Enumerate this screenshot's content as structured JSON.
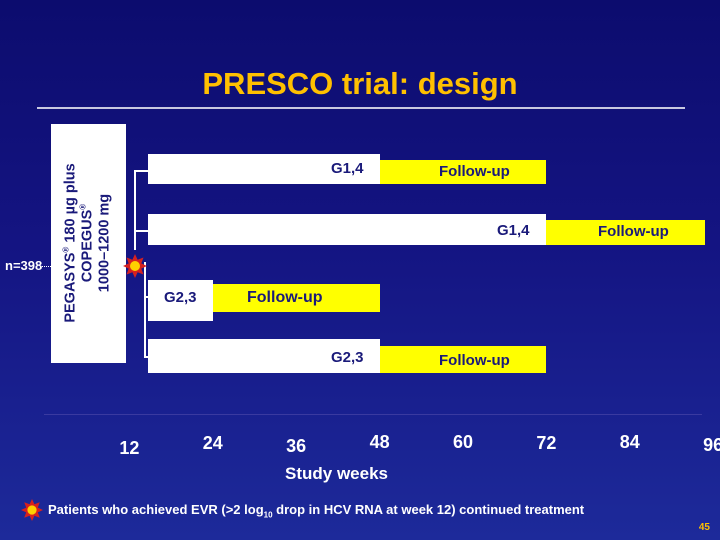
{
  "title": "PRESCO trial: design",
  "arm": {
    "drug1": "PEGASYS",
    "drug1_mark": "®",
    "drug1_dose": " 180 µg plus",
    "drug2": "COPEGUS",
    "drug2_mark": "®",
    "drug2_dose": "1000–1200 mg"
  },
  "n_label": "n=398",
  "arms": [
    {
      "treatment_label": "G1,4",
      "followup_label": "Follow-up",
      "treatment_end_week": 48,
      "followup_end_week": 72
    },
    {
      "treatment_label": "G1,4",
      "followup_label": "Follow-up",
      "treatment_end_week": 72,
      "followup_end_week": 96
    },
    {
      "treatment_label": "G2,3",
      "followup_label": "Follow-up",
      "treatment_end_week": 24,
      "followup_end_week": 48
    },
    {
      "treatment_label": "G2,3",
      "followup_label": "Follow-up",
      "treatment_end_week": 48,
      "followup_end_week": 72
    }
  ],
  "axis": {
    "title": "Study weeks",
    "ticks": [
      "12",
      "24",
      "36",
      "48",
      "60",
      "72",
      "84",
      "96"
    ]
  },
  "footnote": {
    "before": "Patients who achieved EVR (>2 log",
    "sub": "10",
    "after": " drop in HCV RNA at week 12) continued treatment"
  },
  "page_number": "45",
  "colors": {
    "title": "#ffc000",
    "treatment_bar": "#ffffff",
    "followup_bar": "#ffff00",
    "bar_text": "#1a1a7a",
    "background": "#141482"
  }
}
